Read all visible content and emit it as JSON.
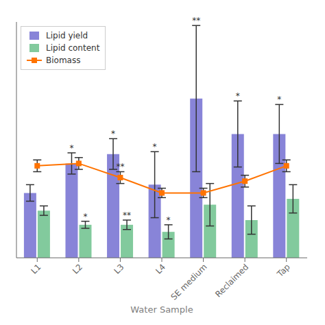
{
  "chart_data": {
    "type": "bar",
    "categories": [
      "L1",
      "L2",
      "L3",
      "L4",
      "SE medium",
      "Reclaimed",
      "Tap"
    ],
    "xlabel": "Water Sample",
    "ylim": [
      0,
      2.0
    ],
    "tick_labels": "x",
    "grid": false,
    "legend": "upper left",
    "series": [
      {
        "name": "Lipid yield",
        "type": "bar",
        "values": [
          0.55,
          0.8,
          0.88,
          0.62,
          1.35,
          1.05,
          1.05
        ],
        "errors": [
          0.07,
          0.09,
          0.13,
          0.28,
          0.62,
          0.28,
          0.25
        ],
        "annotations": [
          {
            "category": "L2",
            "text": "*"
          },
          {
            "category": "L3",
            "text": "*"
          },
          {
            "category": "L4",
            "text": "*"
          },
          {
            "category": "SE medium",
            "text": "**"
          },
          {
            "category": "Reclaimed",
            "text": "*"
          },
          {
            "category": "Tap",
            "text": "*"
          }
        ]
      },
      {
        "name": "Lipid content",
        "type": "bar",
        "values": [
          0.4,
          0.28,
          0.28,
          0.22,
          0.45,
          0.32,
          0.5
        ],
        "errors": [
          0.04,
          0.03,
          0.04,
          0.06,
          0.18,
          0.12,
          0.12
        ],
        "annotations": [
          {
            "category": "L2",
            "text": "*"
          },
          {
            "category": "L3",
            "text": "**"
          },
          {
            "category": "L4",
            "text": "*"
          }
        ]
      },
      {
        "name": "Biomass",
        "type": "line",
        "marker": "square",
        "values": [
          0.78,
          0.8,
          0.68,
          0.55,
          0.55,
          0.65,
          0.78
        ],
        "errors": [
          0.05,
          0.05,
          0.05,
          0.04,
          0.04,
          0.05,
          0.05
        ],
        "annotations": [
          {
            "category": "L3",
            "text": "**"
          }
        ]
      }
    ]
  }
}
